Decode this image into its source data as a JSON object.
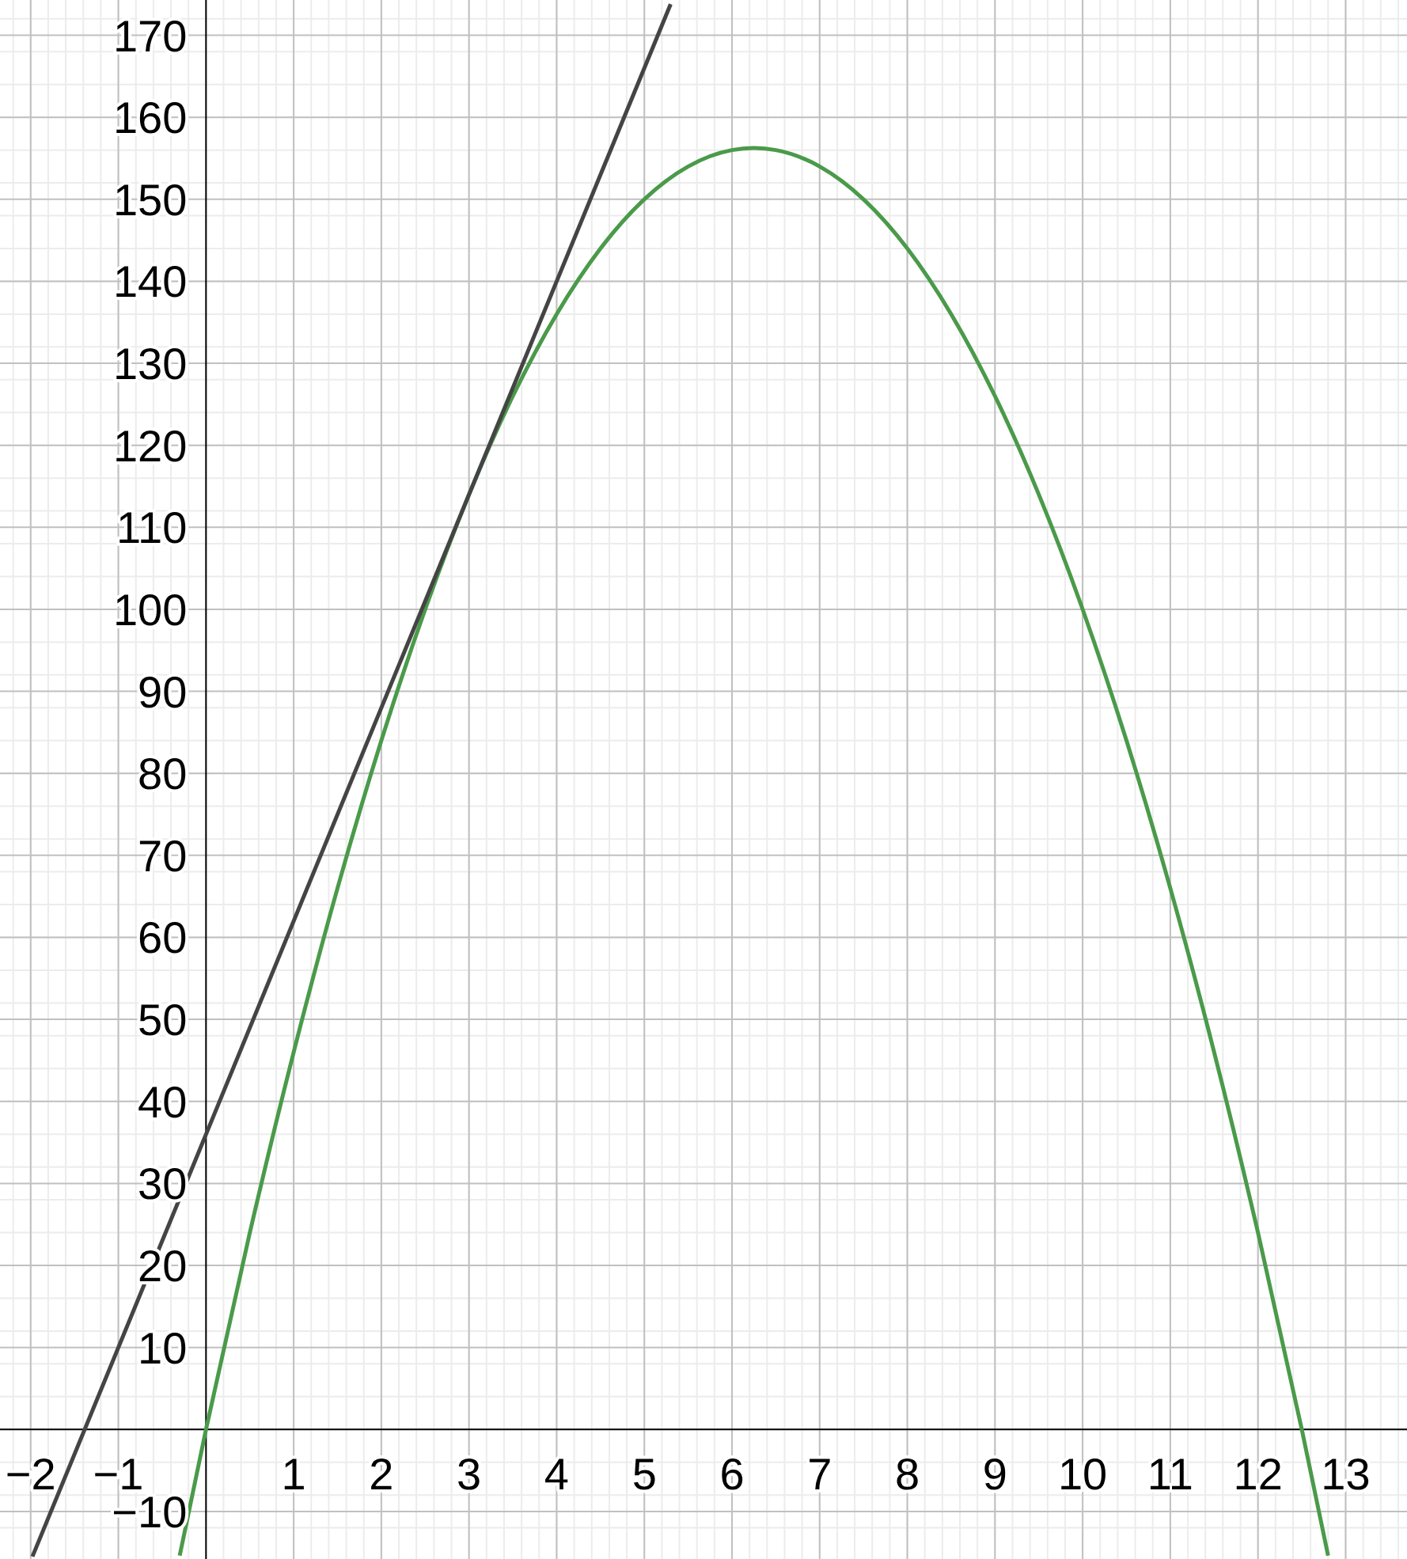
{
  "chart_data": {
    "type": "line",
    "xlim": [
      -2.35,
      13.7
    ],
    "ylim": [
      -15.8,
      174.3
    ],
    "xticks": [
      {
        "value": -2,
        "label": "−2"
      },
      {
        "value": -1,
        "label": "−1"
      },
      1,
      2,
      3,
      4,
      5,
      6,
      7,
      8,
      9,
      10,
      11,
      12,
      13
    ],
    "yticks": [
      {
        "value": -10,
        "label": "−10"
      },
      10,
      20,
      30,
      40,
      50,
      60,
      70,
      80,
      90,
      100,
      110,
      120,
      130,
      140,
      150,
      160,
      170
    ],
    "grid": true,
    "marker": "none",
    "line_style": "solid",
    "series": [
      {
        "color": "#4a9a4a",
        "x": [
          -0.3,
          0,
          0.5,
          1,
          1.5,
          2,
          2.5,
          3,
          3.5,
          4,
          4.5,
          5,
          5.5,
          6,
          6.25,
          6.5,
          7,
          7.5,
          8,
          8.5,
          9,
          9.5,
          10,
          10.5,
          11,
          11.5,
          12,
          12.5,
          12.8
        ],
        "values": [
          -15.4,
          0,
          24,
          46,
          66,
          84,
          100,
          114,
          126,
          136,
          144,
          150,
          154,
          156,
          156.25,
          156,
          154,
          150,
          144,
          136,
          126,
          114,
          100,
          84,
          66,
          46,
          24,
          0,
          -15.4
        ]
      },
      {
        "color": "#444444",
        "x": [
          -1.98,
          5.3
        ],
        "values": [
          -15.5,
          173.8
        ]
      }
    ]
  }
}
